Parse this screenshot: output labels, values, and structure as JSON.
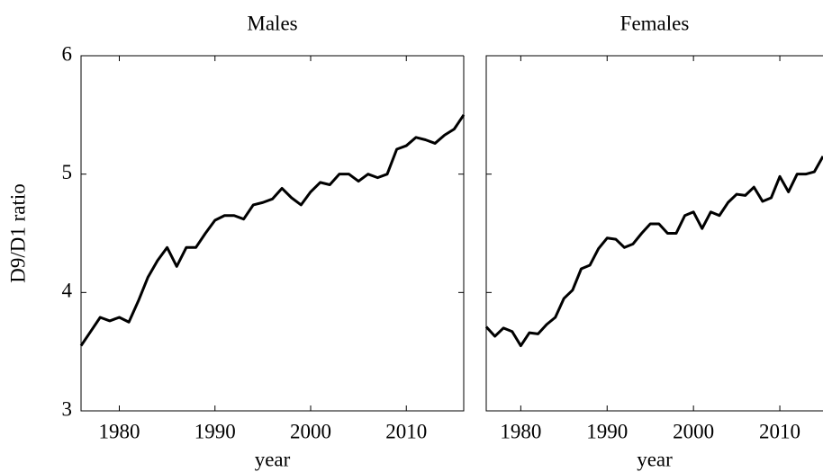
{
  "chart_data": [
    {
      "type": "line",
      "title": "Males",
      "xlabel": "year",
      "ylabel": "D9/D1 ratio",
      "x": [
        1976,
        1977,
        1978,
        1979,
        1980,
        1981,
        1982,
        1983,
        1984,
        1985,
        1986,
        1987,
        1988,
        1989,
        1990,
        1991,
        1992,
        1993,
        1994,
        1995,
        1996,
        1997,
        1998,
        1999,
        2000,
        2001,
        2002,
        2003,
        2004,
        2005,
        2006,
        2007,
        2008,
        2009,
        2010,
        2011,
        2012,
        2013,
        2014,
        2015,
        2016
      ],
      "series": [
        {
          "name": "Males",
          "color": "#000000",
          "values": [
            3.55,
            3.67,
            3.79,
            3.76,
            3.79,
            3.75,
            3.93,
            4.13,
            4.27,
            4.38,
            4.22,
            4.38,
            4.38,
            4.5,
            4.61,
            4.65,
            4.65,
            4.62,
            4.74,
            4.76,
            4.79,
            4.88,
            4.8,
            4.74,
            4.85,
            4.93,
            4.91,
            5.0,
            5.0,
            4.94,
            5.0,
            4.97,
            5.0,
            5.21,
            5.24,
            5.31,
            5.29,
            5.26,
            5.33,
            5.38,
            5.5
          ]
        }
      ],
      "xlim": [
        1976,
        2016
      ],
      "xticks": [
        1980,
        1990,
        2000,
        2010
      ],
      "ylim": [
        3,
        6
      ],
      "yticks": [
        3,
        4,
        5,
        6
      ],
      "ytick_labels": true
    },
    {
      "type": "line",
      "title": "Females",
      "xlabel": "year",
      "x": [
        1976,
        1977,
        1978,
        1979,
        1980,
        1981,
        1982,
        1983,
        1984,
        1985,
        1986,
        1987,
        1988,
        1989,
        1990,
        1991,
        1992,
        1993,
        1994,
        1995,
        1996,
        1997,
        1998,
        1999,
        2000,
        2001,
        2002,
        2003,
        2004,
        2005,
        2006,
        2007,
        2008,
        2009,
        2010,
        2011,
        2012,
        2013,
        2014,
        2015
      ],
      "series": [
        {
          "name": "Females",
          "color": "#000000",
          "values": [
            3.71,
            3.63,
            3.7,
            3.67,
            3.55,
            3.66,
            3.65,
            3.73,
            3.79,
            3.95,
            4.02,
            4.2,
            4.23,
            4.37,
            4.46,
            4.45,
            4.38,
            4.41,
            4.5,
            4.58,
            4.58,
            4.5,
            4.5,
            4.65,
            4.68,
            4.54,
            4.68,
            4.65,
            4.76,
            4.83,
            4.82,
            4.89,
            4.77,
            4.8,
            4.98,
            4.85,
            5.0,
            5.0,
            5.02,
            5.15
          ]
        }
      ],
      "xlim": [
        1976,
        2015
      ],
      "xticks": [
        1980,
        1990,
        2000,
        2010
      ],
      "ylim": [
        3,
        6
      ],
      "yticks": [
        3,
        4,
        5,
        6
      ],
      "ytick_labels": false
    }
  ]
}
